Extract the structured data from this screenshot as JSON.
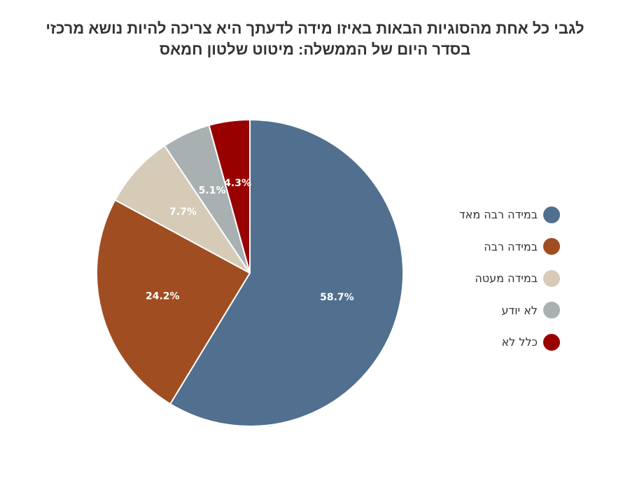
{
  "title_lines": [
    "לגבי כל אחת מהסוגיות הבאות באיזו מידה לדעתך היא צריכה להיות נושא מרכזי",
    "בסדר היום של הממשלה: מיטוט שלטון חמאס"
  ],
  "chart_data": {
    "type": "pie",
    "title": "לגבי כל אחת מהסוגיות הבאות באיזו מידה לדעתך היא צריכה להיות נושא מרכזי בסדר היום של הממשלה: מיטוט שלטון חמאס",
    "categories": [
      "במידה רבה מאד",
      "במידה רבה",
      "במידה מעטה",
      "לא יודע",
      "כלל לא"
    ],
    "values": [
      58.7,
      24.2,
      7.7,
      5.1,
      4.3
    ],
    "labels": [
      "58.7%",
      "24.2%",
      "7.7%",
      "5.1%",
      "4.3%"
    ],
    "colors": [
      "#516F8F",
      "#A04D22",
      "#D6CBB7",
      "#A9B0B1",
      "#990000"
    ],
    "legend_position": "right",
    "start": "top, clockwise"
  }
}
